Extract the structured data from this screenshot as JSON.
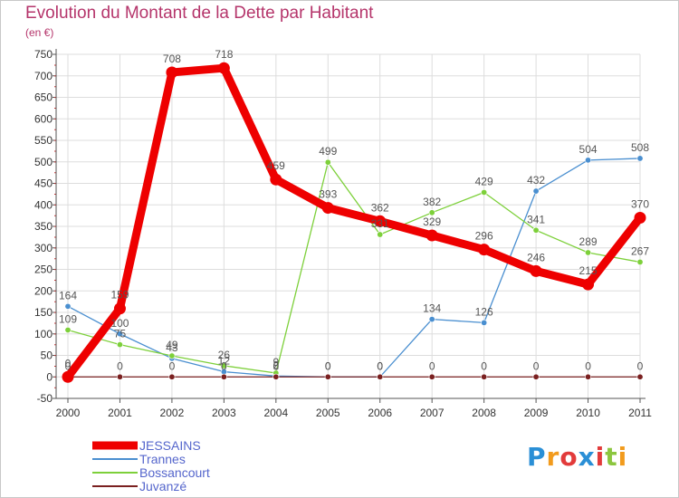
{
  "title": "Evolution du Montant de la Dette par Habitant",
  "subtitle": "(en €)",
  "logo": {
    "text": "Proxiti"
  },
  "colors": {
    "title": "#b5356b",
    "grid": "#dddddd",
    "axis": "#555555"
  },
  "chart_data": {
    "type": "line",
    "title": "Evolution du Montant de la Dette par Habitant",
    "subtitle": "(en €)",
    "xlabel": "",
    "ylabel": "",
    "ylim": [
      -50,
      750
    ],
    "ytick_step": 50,
    "grid": true,
    "legend_position": "bottom-left",
    "x": [
      "2000",
      "2001",
      "2002",
      "2003",
      "2004",
      "2005",
      "2006",
      "2007",
      "2008",
      "2009",
      "2010",
      "2011"
    ],
    "series": [
      {
        "name": "JESSAINS",
        "color": "#ee0000",
        "thick": true,
        "values": [
          0,
          159,
          708,
          718,
          459,
          393,
          362,
          329,
          296,
          246,
          215,
          370
        ],
        "labels": [
          "0",
          "159",
          "708",
          "718",
          "459",
          "393",
          "362",
          "329",
          "296",
          "246",
          "215",
          "370"
        ]
      },
      {
        "name": "Trannes",
        "color": "#4a8fd0",
        "thick": false,
        "values": [
          164,
          100,
          43,
          12,
          2,
          0,
          0,
          134,
          126,
          432,
          504,
          508
        ],
        "labels": [
          "164",
          "100",
          "43",
          "12",
          "2",
          "0",
          "0",
          "134",
          "126",
          "432",
          "504",
          "508"
        ]
      },
      {
        "name": "Bossancourt",
        "color": "#7dd03a",
        "thick": false,
        "values": [
          109,
          75,
          49,
          26,
          9,
          499,
          331,
          382,
          429,
          341,
          289,
          267
        ],
        "labels": [
          "109",
          "75",
          "49",
          "26",
          "9",
          "499",
          "331",
          "382",
          "429",
          "341",
          "289",
          "267"
        ]
      },
      {
        "name": "Juvanzé",
        "color": "#7a2020",
        "thick": false,
        "values": [
          0,
          0,
          0,
          0,
          0,
          0,
          0,
          0,
          0,
          0,
          0,
          0
        ],
        "labels": [
          "0",
          "0",
          "0",
          "0",
          "0",
          "0",
          "0",
          "0",
          "0",
          "0",
          "0",
          "0"
        ]
      }
    ]
  }
}
